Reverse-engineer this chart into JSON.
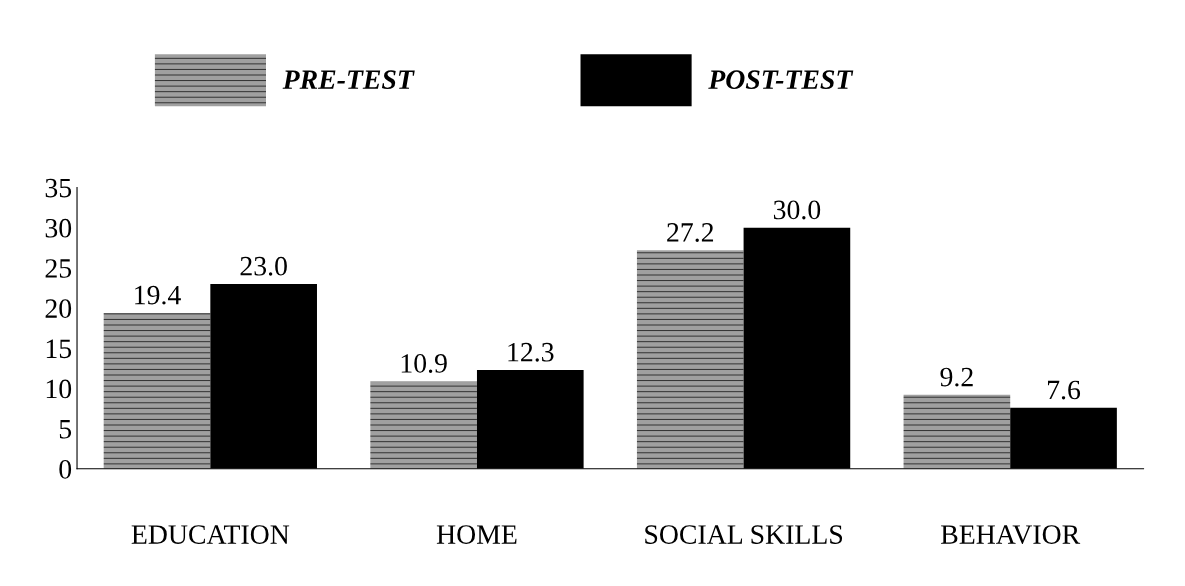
{
  "chart_data": {
    "type": "bar",
    "categories": [
      "EDUCATION",
      "HOME",
      "SOCIAL SKILLS",
      "BEHAVIOR"
    ],
    "series": [
      {
        "name": "PRE-TEST",
        "color": "#a0a0a0",
        "values": [
          19.4,
          10.9,
          27.2,
          9.2
        ],
        "value_labels": [
          "19.4",
          "10.9",
          "27.2",
          "9.2"
        ]
      },
      {
        "name": "POST-TEST",
        "color": "#000000",
        "values": [
          23.0,
          12.3,
          30.0,
          7.6
        ],
        "value_labels": [
          "23.0",
          "12.3",
          "30.0",
          "7.6"
        ]
      }
    ],
    "ylim": [
      0,
      35
    ],
    "yticks": [
      0,
      5,
      10,
      15,
      20,
      25,
      30,
      35
    ],
    "grid": false,
    "legend": "top"
  }
}
